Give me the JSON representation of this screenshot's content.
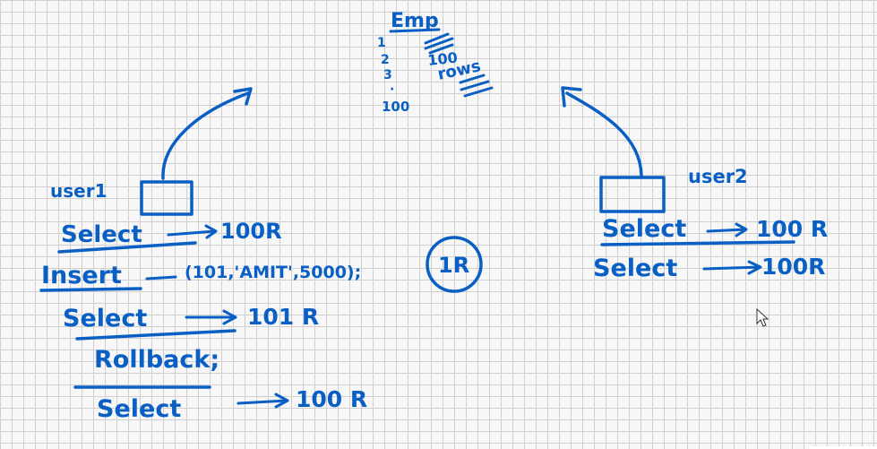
{
  "table": {
    "name": "Emp",
    "row_start": "1",
    "row_2": "2",
    "row_3": "3",
    "row_dot": "·",
    "row_end": "100",
    "row_count": "100",
    "rows_word": "rows"
  },
  "user1": {
    "label": "user1",
    "steps": [
      {
        "command": "Select",
        "result": "100R"
      },
      {
        "command": "Insert",
        "values": "(101,'AMIT',5000);",
        "badge": "1R"
      },
      {
        "command": "Select",
        "result": "101 R"
      },
      {
        "command": "Rollback;"
      },
      {
        "command": "Select",
        "result": "100 R"
      }
    ]
  },
  "user2": {
    "label": "user2",
    "steps": [
      {
        "command": "Select",
        "result": "100 R"
      },
      {
        "command": "Select",
        "result": "100R"
      }
    ]
  },
  "colors": {
    "ink": "#0a5fc4",
    "grid": "#cfcfcf",
    "background": "#f7f7f7"
  },
  "icons": {
    "cursor": "mouse-pointer-icon"
  }
}
